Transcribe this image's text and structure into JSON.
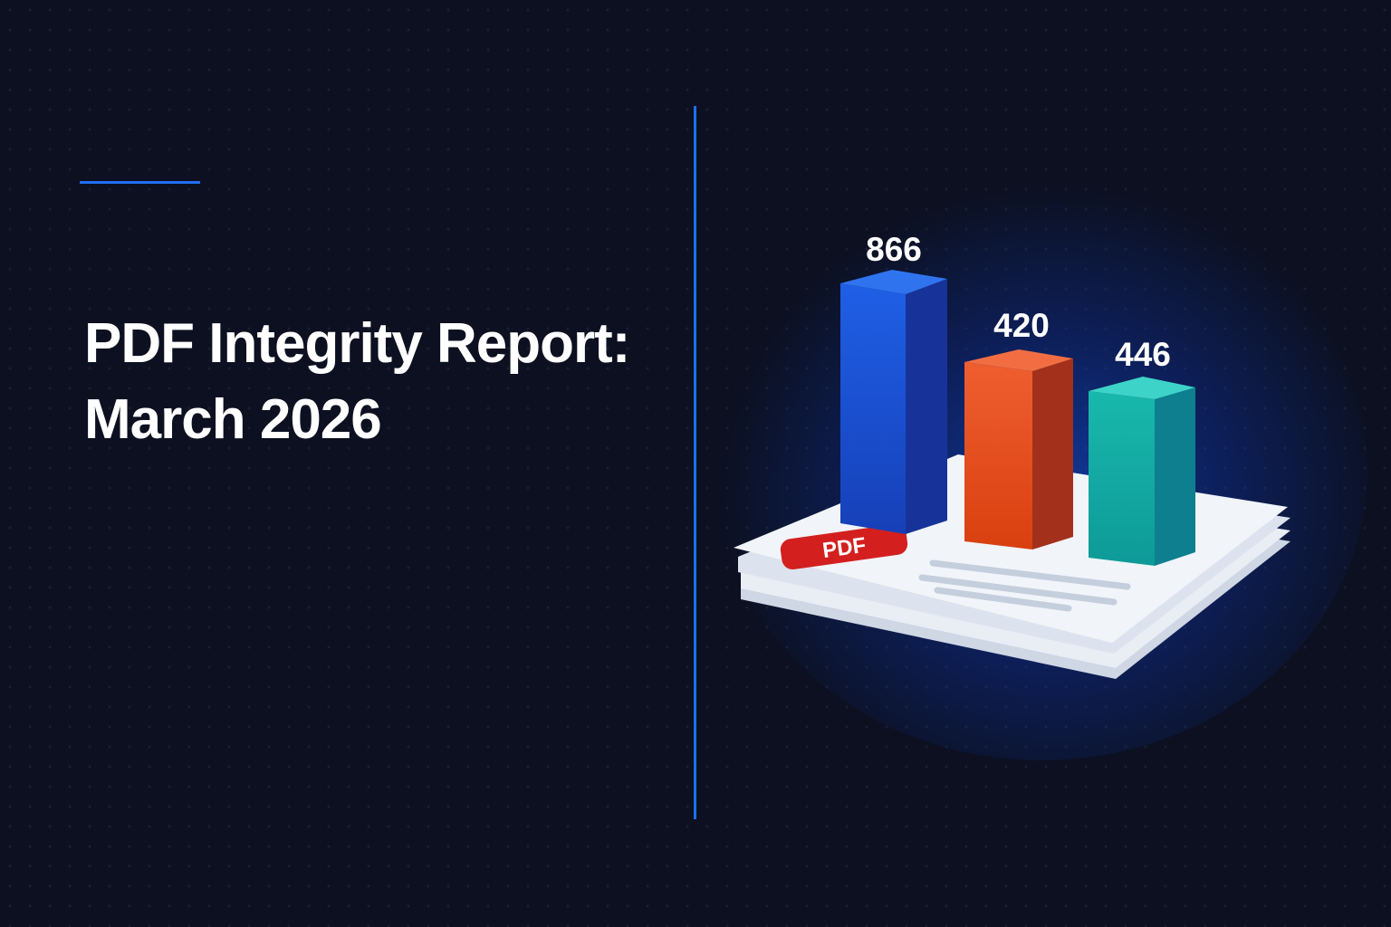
{
  "title": {
    "line1": "PDF Integrity Report:",
    "line2": "March 2026"
  },
  "illustration": {
    "badge_text": "PDF",
    "bars": [
      {
        "value_label": "866",
        "color": "#1f56d8"
      },
      {
        "value_label": "420",
        "color": "#e8502a"
      },
      {
        "value_label": "446",
        "color": "#14b0a8"
      }
    ]
  },
  "colors": {
    "background": "#0c1020",
    "accent": "#1f6ff0",
    "badge": "#d41f1f"
  }
}
